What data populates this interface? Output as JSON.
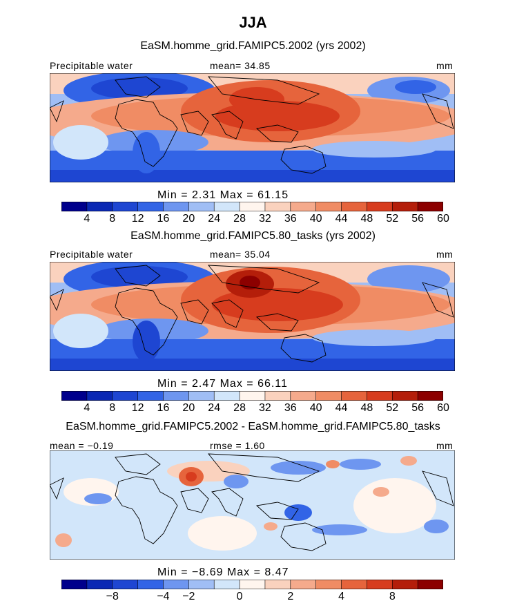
{
  "page_title": "JJA",
  "colors": {
    "scale": [
      "#00008c",
      "#0a28b4",
      "#1e46d2",
      "#3264e6",
      "#6e96f0",
      "#a0bef5",
      "#d2e6fa",
      "#fff5ee",
      "#fad2be",
      "#f5aa8c",
      "#f08c64",
      "#e6643c",
      "#d73c1e",
      "#b41e0a",
      "#8c0000"
    ],
    "land": "#000000"
  },
  "chart_data": [
    {
      "type": "heatmap",
      "title": "EaSM.homme_grid.FAMIPC5.2002 (yrs 2002)",
      "left_label": "Precipitable water",
      "center_label": "mean=  34.85",
      "right_label": "mm",
      "variable": "Precipitable water",
      "units": "mm",
      "mean": 34.85,
      "min": 2.31,
      "max": 61.15,
      "minmax_text": "Min =    2.31  Max =   61.15",
      "colorbar_levels": [
        4,
        8,
        12,
        16,
        20,
        24,
        28,
        32,
        36,
        40,
        44,
        48,
        52,
        56,
        60
      ],
      "colorbar_tick_labels": [
        "4",
        "8",
        "12",
        "16",
        "20",
        "24",
        "28",
        "32",
        "36",
        "40",
        "44",
        "48",
        "52",
        "56",
        "60"
      ]
    },
    {
      "type": "heatmap",
      "title": "EaSM.homme_grid.FAMIPC5.80_tasks (yrs 2002)",
      "left_label": "Precipitable water",
      "center_label": "mean=  35.04",
      "right_label": "mm",
      "variable": "Precipitable water",
      "units": "mm",
      "mean": 35.04,
      "min": 2.47,
      "max": 66.11,
      "minmax_text": "Min =    2.47  Max =   66.11",
      "colorbar_levels": [
        4,
        8,
        12,
        16,
        20,
        24,
        28,
        32,
        36,
        40,
        44,
        48,
        52,
        56,
        60
      ],
      "colorbar_tick_labels": [
        "4",
        "8",
        "12",
        "16",
        "20",
        "24",
        "28",
        "32",
        "36",
        "40",
        "44",
        "48",
        "52",
        "56",
        "60"
      ]
    },
    {
      "type": "heatmap",
      "title": "EaSM.homme_grid.FAMIPC5.2002 - EaSM.homme_grid.FAMIPC5.80_tasks",
      "left_label": "mean =  −0.19",
      "center_label": "rmse =    1.60",
      "right_label": "mm",
      "units": "mm",
      "mean": -0.19,
      "rmse": 1.6,
      "min": -8.69,
      "max": 8.47,
      "minmax_text": "Min =  −8.69  Max =    8.47",
      "colorbar_levels": [
        -8,
        -4,
        -2,
        0,
        2,
        4,
        8
      ],
      "colorbar_tick_labels": [
        "−8",
        "−4",
        "−2",
        "0",
        "2",
        "4",
        "8"
      ]
    }
  ]
}
